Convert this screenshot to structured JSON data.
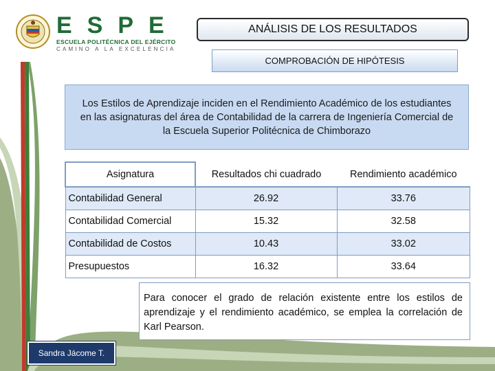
{
  "logo": {
    "word": "ESPE",
    "line1": "ESCUELA POLITÉCNICA DEL EJÉRCITO",
    "line2": "CAMINO A LA EXCELENCIA"
  },
  "title": "ANÁLISIS DE LOS RESULTADOS",
  "subtitle": "COMPROBACIÓN DE HIPÓTESIS",
  "hypothesis": "Los Estilos de Aprendizaje inciden en el Rendimiento Académico de los estudiantes en las asignaturas del área de Contabilidad de la carrera de Ingeniería Comercial de la Escuela Superior Politécnica de Chimborazo",
  "table": {
    "headers": [
      "Asignatura",
      "Resultados chi cuadrado",
      "Rendimiento académico"
    ],
    "rows": [
      [
        "Contabilidad General",
        "26.92",
        "33.76"
      ],
      [
        "Contabilidad Comercial",
        "15.32",
        "32.58"
      ],
      [
        "Contabilidad de Costos",
        "10.43",
        "33.02"
      ],
      [
        "Presupuestos",
        "16.32",
        "33.64"
      ]
    ]
  },
  "note": "Para conocer el grado de relación existente entre los estilos de aprendizaje y el rendimiento académico, se emplea la correlación de Karl Pearson.",
  "author": "Sandra Jácome T.",
  "colors": {
    "brand_green": "#1f6b35",
    "sage_stripe": "#9caf84",
    "accent_blue": "#1e3a6b",
    "box_blue": "#c8daf2"
  }
}
